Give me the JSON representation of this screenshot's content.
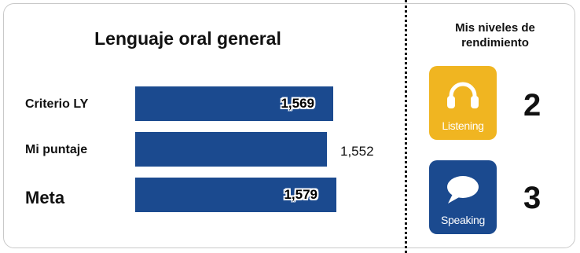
{
  "general": {
    "title": "Lenguaje oral general",
    "rows": [
      {
        "label": "Criterio LY",
        "value": "1,569",
        "fill": 0.81
      },
      {
        "label": "Mi puntaje",
        "value": "1,552",
        "fill": 0.8
      },
      {
        "label": "Meta",
        "value": "1,579",
        "fill": 0.82
      }
    ]
  },
  "levels": {
    "title_line1": "Mis niveles de",
    "title_line2": "rendimiento",
    "items": [
      {
        "label": "Listening",
        "level": "2",
        "color": "#f0b521",
        "icon": "headphones-icon"
      },
      {
        "label": "Speaking",
        "level": "3",
        "color": "#1b4a8f",
        "icon": "speech-bubble-icon"
      }
    ]
  },
  "colors": {
    "bar": "#1b4a8f",
    "border": "#c9c9c9"
  }
}
